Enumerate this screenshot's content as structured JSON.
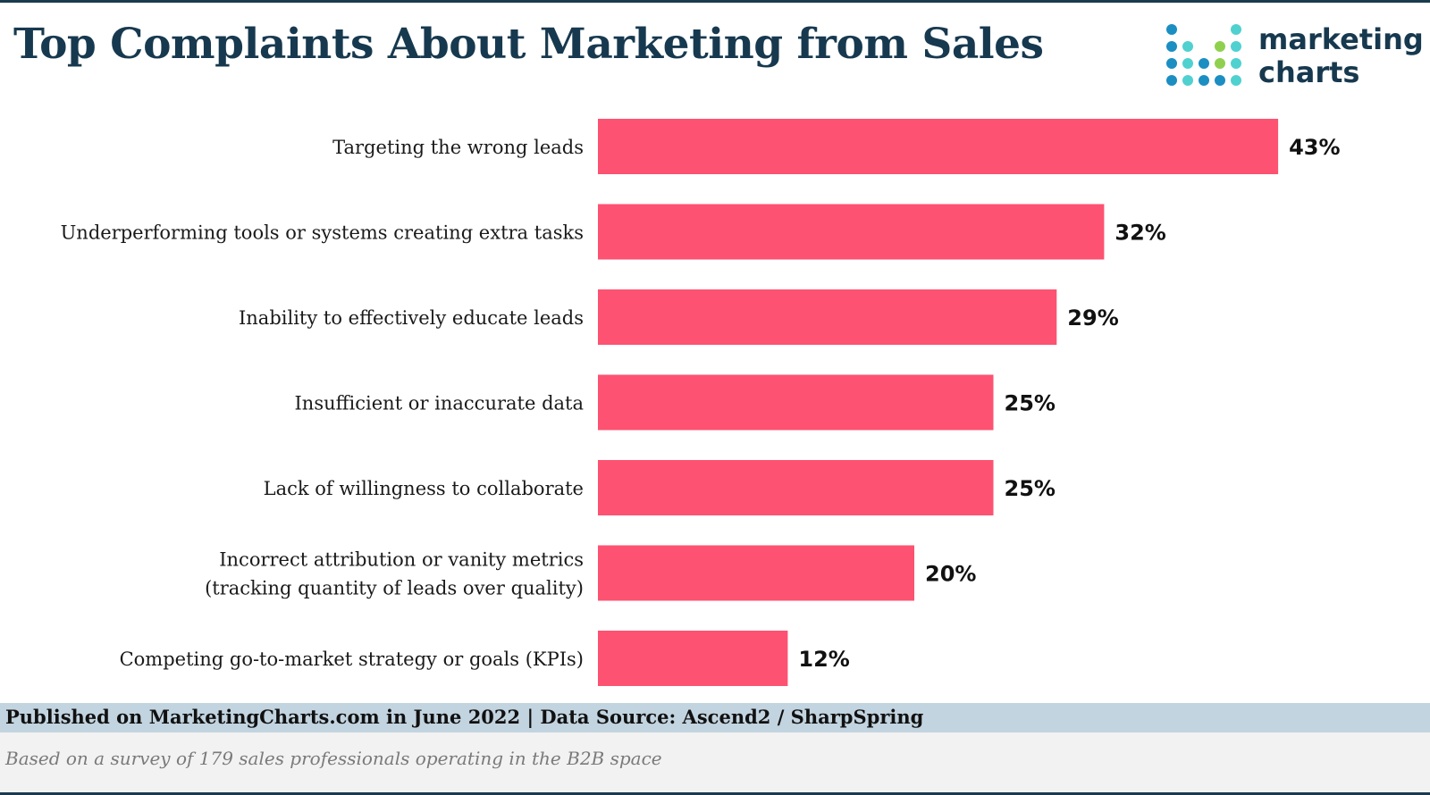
{
  "header": {
    "title": "Top Complaints About Marketing from Sales"
  },
  "logo": {
    "line1": "marketing",
    "line2": "charts",
    "dot_colors": [
      "#1b8ec2",
      "#4fd1d0",
      "#8fd14f"
    ]
  },
  "chart_data": {
    "type": "bar",
    "orientation": "horizontal",
    "title": "Top Complaints About Marketing from Sales",
    "categories": [
      [
        "Targeting the wrong leads"
      ],
      [
        "Underperforming tools or systems creating extra tasks"
      ],
      [
        "Inability to effectively educate leads"
      ],
      [
        "Insufficient or inaccurate data"
      ],
      [
        "Lack of willingness to collaborate"
      ],
      [
        "Incorrect attribution or vanity metrics",
        "(tracking quantity of leads over quality)"
      ],
      [
        "Competing go-to-market strategy or goals (KPIs)"
      ]
    ],
    "values": [
      43,
      32,
      29,
      25,
      25,
      20,
      12
    ],
    "value_labels": [
      "43%",
      "32%",
      "29%",
      "25%",
      "25%",
      "20%",
      "12%"
    ],
    "unit": "%",
    "bar_color": "#fd5271",
    "grid": false
  },
  "footer": {
    "source": "Published on MarketingCharts.com in June 2022 | Data Source: Ascend2 / SharpSpring",
    "note": "Based on a survey of 179 sales professionals operating in the B2B space"
  }
}
